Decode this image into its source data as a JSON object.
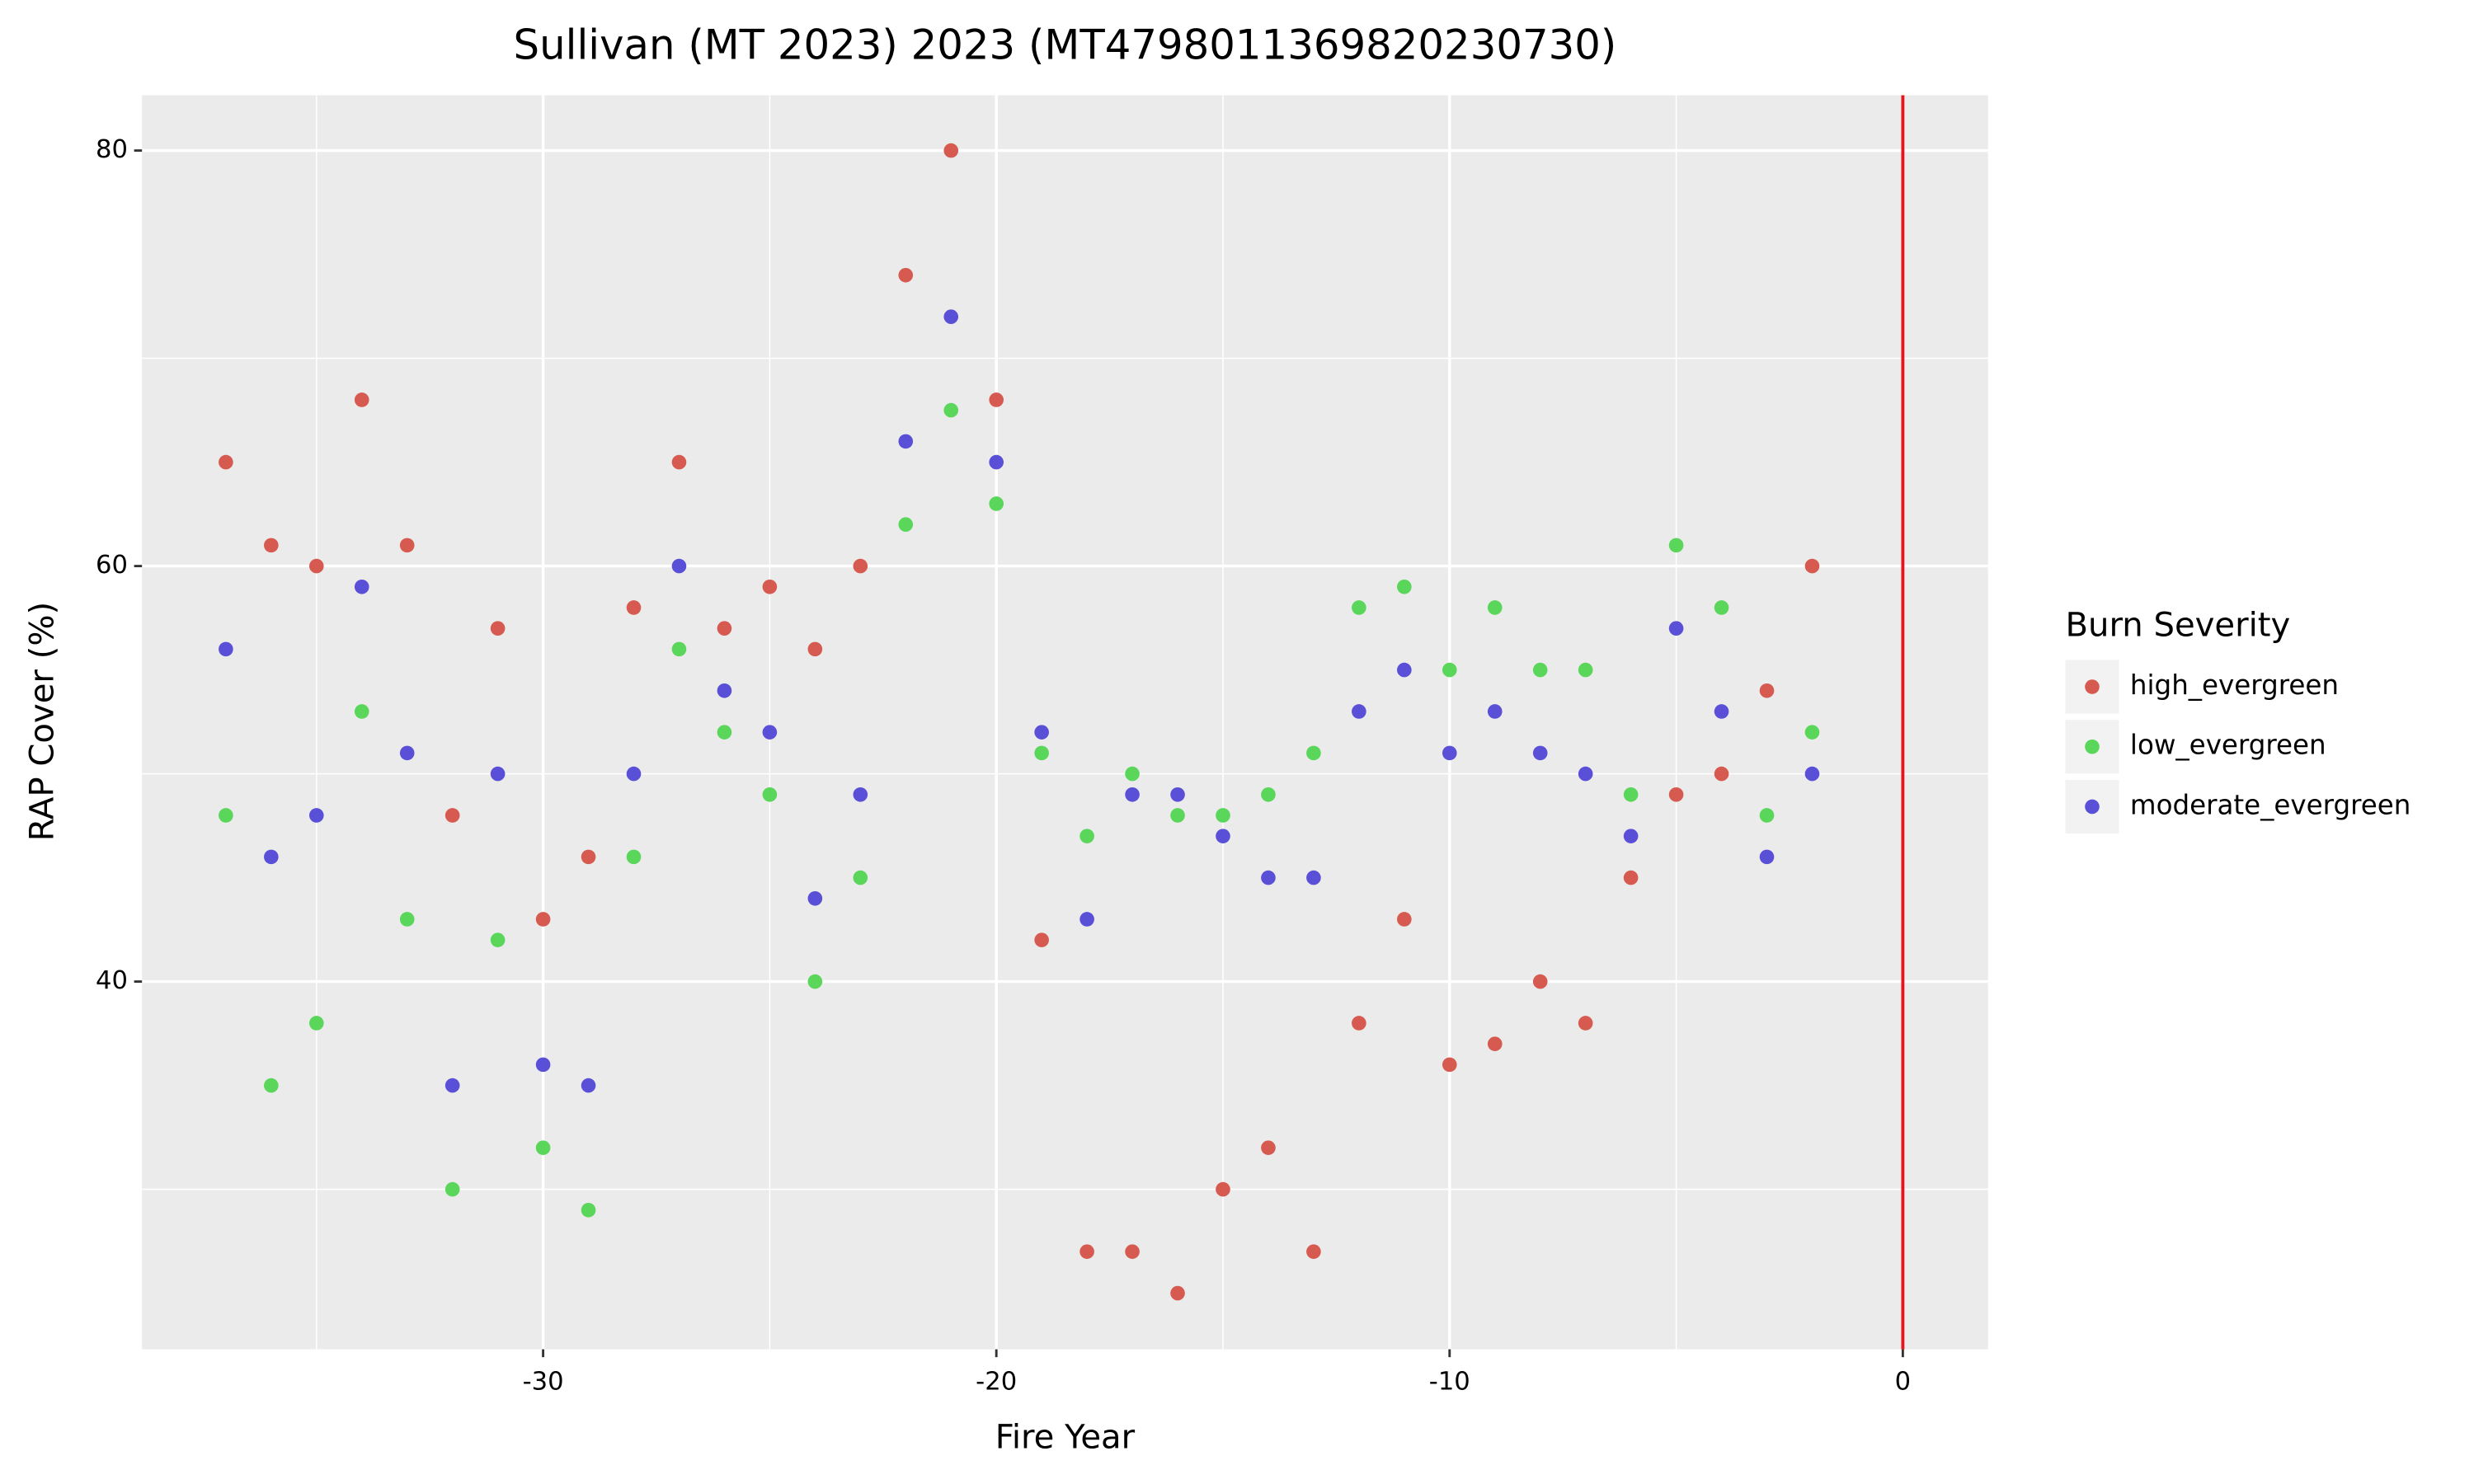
{
  "chart_data": {
    "type": "scatter",
    "title": "Sullivan (MT 2023) 2023 (MT4798011369820230730)",
    "x_label": "Fire Year",
    "y_label": "RAP Cover (%)",
    "x": [
      -37,
      -36,
      -35,
      -34,
      -33,
      -32,
      -31,
      -30,
      -29,
      -28,
      -27,
      -26,
      -25,
      -24,
      -23,
      -22,
      -21,
      -20,
      -19,
      -18,
      -17,
      -16,
      -15,
      -14,
      -13,
      -12,
      -11,
      -10,
      -9,
      -8,
      -7,
      -6,
      -5,
      -4,
      -3,
      -2
    ],
    "series": [
      {
        "name": "high_evergreen",
        "color": "#d65a4f",
        "values": [
          65,
          61,
          60,
          68,
          61,
          48,
          57,
          43,
          46,
          58,
          65,
          57,
          59,
          56,
          60,
          74,
          80,
          68,
          42,
          27,
          27,
          25,
          30,
          32,
          27,
          38,
          43,
          36,
          37,
          40,
          38,
          45,
          49,
          50,
          54,
          60
        ]
      },
      {
        "name": "low_evergreen",
        "color": "#5ad65a",
        "values": [
          48,
          35,
          38,
          53,
          43,
          30,
          42,
          32,
          29,
          46,
          56,
          52,
          49,
          40,
          45,
          62,
          67.5,
          63,
          51,
          47,
          50,
          48,
          48,
          49,
          51,
          58,
          59,
          55,
          58,
          55,
          55,
          49,
          61,
          58,
          48,
          52
        ]
      },
      {
        "name": "moderate_evergreen",
        "color": "#5a50d8",
        "values": [
          56,
          46,
          48,
          59,
          51,
          35,
          50,
          36,
          35,
          50,
          60,
          54,
          52,
          44,
          49,
          66,
          72,
          65,
          52,
          43,
          49,
          49,
          47,
          45,
          45,
          53,
          55,
          51,
          53,
          51,
          50,
          47,
          57,
          53,
          46,
          50
        ]
      }
    ],
    "xlim": [
      -38.85,
      1.88
    ],
    "ylim": [
      22.3,
      82.66
    ],
    "xticks": [
      -30,
      -20,
      -10,
      0
    ],
    "yticks": [
      40,
      60,
      80
    ],
    "minor_xticks": [
      -35,
      -25,
      -15,
      -5
    ],
    "minor_yticks": [
      30,
      50,
      70
    ],
    "grid": true,
    "vline": {
      "value": 0,
      "color": "#e8141c"
    },
    "legend_title": "Burn Severity",
    "legend_position": "right"
  }
}
